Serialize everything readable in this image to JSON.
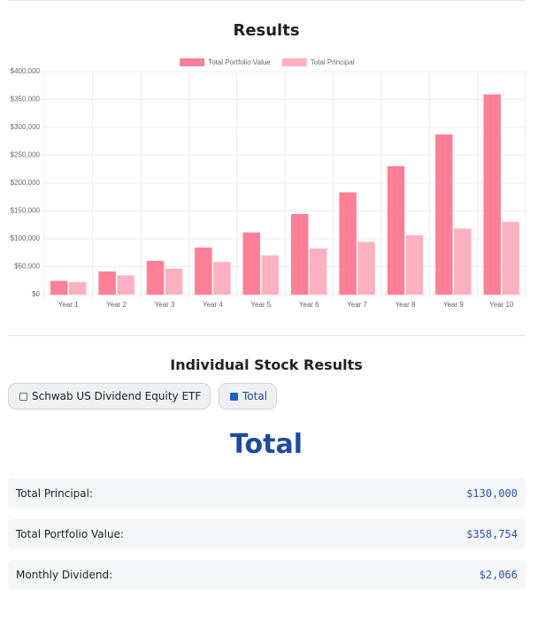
{
  "results_title": "Results",
  "chart_data": {
    "type": "bar",
    "categories": [
      "Year 1",
      "Year 2",
      "Year 3",
      "Year 4",
      "Year 5",
      "Year 6",
      "Year 7",
      "Year 8",
      "Year 9",
      "Year 10"
    ],
    "series": [
      {
        "name": "Total Portfolio Value",
        "color": "#ff7f98",
        "values": [
          24000,
          41000,
          60000,
          84000,
          111000,
          144000,
          183000,
          230000,
          287000,
          358754
        ]
      },
      {
        "name": "Total Principal",
        "color": "#ffb0c0",
        "values": [
          22000,
          34000,
          46000,
          58000,
          70000,
          82000,
          94000,
          106000,
          118000,
          130000
        ]
      }
    ],
    "ylim": [
      0,
      400000
    ],
    "yticks": [
      {
        "value": 0,
        "label": "$0"
      },
      {
        "value": 50000,
        "label": "$50,000"
      },
      {
        "value": 100000,
        "label": "$100,000"
      },
      {
        "value": 150000,
        "label": "$150,000"
      },
      {
        "value": 200000,
        "label": "$200,000"
      },
      {
        "value": 250000,
        "label": "$250,000"
      },
      {
        "value": 300000,
        "label": "$300,000"
      },
      {
        "value": 350000,
        "label": "$350,000"
      },
      {
        "value": 400000,
        "label": "$400,000"
      }
    ],
    "grid": true,
    "legend": "top"
  },
  "section_title": "Individual Stock Results",
  "filters": [
    {
      "label": "Schwab US Dividend Equity ETF",
      "checked": false
    },
    {
      "label": "Total",
      "checked": true
    }
  ],
  "selected_title": "Total",
  "summary": [
    {
      "label": "Total Principal:",
      "value": "$130,000"
    },
    {
      "label": "Total Portfolio Value:",
      "value": "$358,754"
    },
    {
      "label": "Monthly Dividend:",
      "value": "$2,066"
    }
  ]
}
